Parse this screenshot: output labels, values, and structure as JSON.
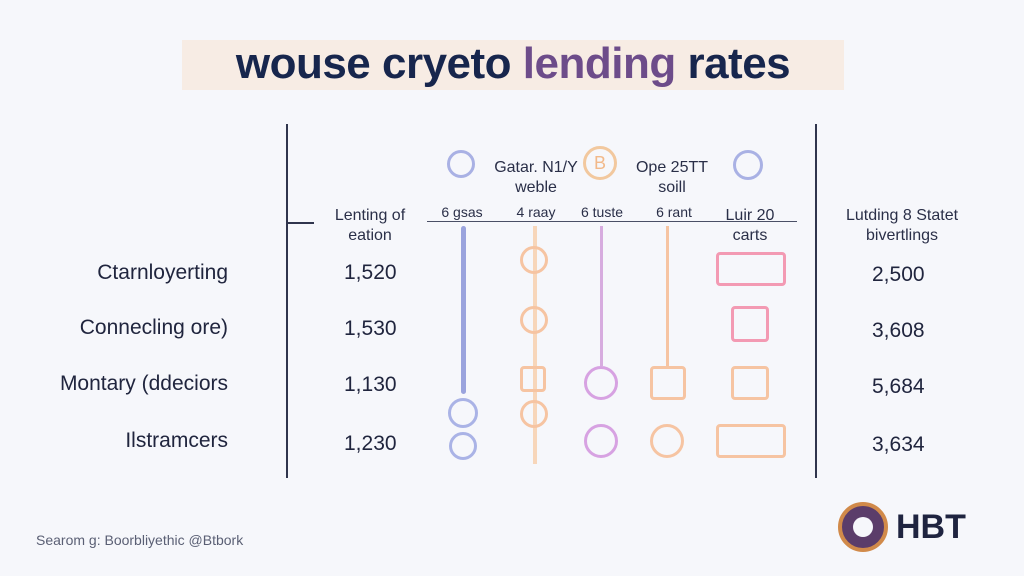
{
  "title": {
    "part1": "wouse cryeto ",
    "highlight": "lending",
    "part2": " rates"
  },
  "headers": {
    "col_a": [
      "Lenting of",
      "eation"
    ],
    "col_b_top": [
      "Gatar. N1/Y",
      "weble"
    ],
    "col_c_top": [
      "Ope 25TT",
      "soill"
    ],
    "sub1": "6 gsas",
    "sub2": "4 raay",
    "sub3": "6 tuste",
    "sub4": "6 rant",
    "col_d": [
      "Luir 20",
      "carts"
    ],
    "col_e": [
      "Lutding 8 Statet",
      "bivertlings"
    ]
  },
  "rows": [
    {
      "label": "Ctarnloyerting",
      "value1": "1,520",
      "value2": "2,500"
    },
    {
      "label": "Connecling ore)",
      "value1": "1,530",
      "value2": "3,608"
    },
    {
      "label": "Montary (ddeciors",
      "value1": "1,130",
      "value2": "5,684"
    },
    {
      "label": "Ilstramcers",
      "value1": "1,230",
      "value2": "3,634"
    }
  ],
  "footer": "Searom g: Boorbliyethic @Btbork",
  "logo": "HBT",
  "colors": {
    "blue": "#8f9ad6",
    "orange": "#f2b98a",
    "purple": "#c98fd8",
    "pink": "#ef7e9e",
    "dark": "#30354d"
  },
  "icons": [
    "coin-icon",
    "bitcoin-icon",
    "coin-icon",
    "arrow-box-icon",
    "lock-icon",
    "clock-icon"
  ]
}
